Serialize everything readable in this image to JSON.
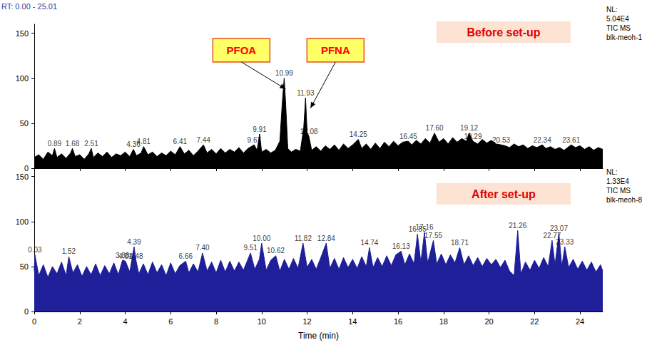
{
  "chart_data": [
    {
      "type": "line",
      "title": "RT: 0.00 - 25.01",
      "subtitle": "Before set-up",
      "side_text": [
        "NL:",
        "5.04E4",
        "TIC MS",
        "blk-meoh-1"
      ],
      "color": "#000000",
      "tick_labels": "y",
      "grid": false,
      "xlim": [
        0,
        25
      ],
      "xticks": [
        0,
        2,
        4,
        6,
        8,
        10,
        12,
        14,
        16,
        18,
        20,
        22,
        24
      ],
      "ylim": [
        0,
        160
      ],
      "yticks": [
        0,
        50,
        100,
        150
      ],
      "x": [
        0,
        0.2,
        0.4,
        0.6,
        0.8,
        0.89,
        1.0,
        1.2,
        1.4,
        1.6,
        1.68,
        1.8,
        2.0,
        2.2,
        2.4,
        2.51,
        2.6,
        2.8,
        3.0,
        3.2,
        3.4,
        3.6,
        3.8,
        4.0,
        4.2,
        4.36,
        4.5,
        4.7,
        4.81,
        5.0,
        5.2,
        5.4,
        5.6,
        5.8,
        6.0,
        6.2,
        6.41,
        6.6,
        6.8,
        7.0,
        7.2,
        7.44,
        7.6,
        7.8,
        8.0,
        8.2,
        8.4,
        8.6,
        8.8,
        9.0,
        9.2,
        9.4,
        9.67,
        9.8,
        9.91,
        10.0,
        10.2,
        10.4,
        10.6,
        10.8,
        10.9,
        10.99,
        11.05,
        11.15,
        11.3,
        11.5,
        11.7,
        11.85,
        11.93,
        12.0,
        12.08,
        12.2,
        12.4,
        12.6,
        12.8,
        13.0,
        13.2,
        13.4,
        13.6,
        13.8,
        14.0,
        14.25,
        14.4,
        14.6,
        14.8,
        15.0,
        15.2,
        15.4,
        15.6,
        15.8,
        16.0,
        16.2,
        16.45,
        16.6,
        16.8,
        17.0,
        17.2,
        17.4,
        17.6,
        17.8,
        18.0,
        18.2,
        18.4,
        18.6,
        18.8,
        19.0,
        19.12,
        19.29,
        19.5,
        19.7,
        19.9,
        20.1,
        20.3,
        20.53,
        20.7,
        20.9,
        21.1,
        21.3,
        21.5,
        21.7,
        21.9,
        22.1,
        22.34,
        22.5,
        22.7,
        22.9,
        23.1,
        23.3,
        23.61,
        23.8,
        24.0,
        24.2,
        24.4,
        24.6,
        24.8,
        25.0
      ],
      "values": [
        12,
        15,
        10,
        18,
        14,
        22,
        12,
        16,
        11,
        17,
        22,
        13,
        15,
        10,
        16,
        22,
        12,
        17,
        13,
        18,
        12,
        16,
        14,
        18,
        13,
        21,
        14,
        17,
        24,
        15,
        18,
        13,
        17,
        14,
        19,
        15,
        24,
        16,
        20,
        14,
        19,
        26,
        17,
        21,
        16,
        22,
        17,
        21,
        18,
        23,
        17,
        22,
        26,
        20,
        38,
        18,
        21,
        17,
        20,
        30,
        70,
        100,
        75,
        22,
        18,
        21,
        19,
        45,
        78,
        40,
        35,
        20,
        24,
        19,
        25,
        21,
        26,
        20,
        27,
        22,
        26,
        32,
        22,
        27,
        21,
        28,
        22,
        29,
        24,
        30,
        25,
        29,
        30,
        26,
        31,
        27,
        33,
        28,
        39,
        29,
        33,
        27,
        34,
        29,
        33,
        30,
        39,
        30,
        27,
        32,
        28,
        31,
        27,
        26,
        25,
        23,
        27,
        24,
        26,
        22,
        25,
        23,
        26,
        22,
        24,
        21,
        23,
        20,
        26,
        23,
        25,
        21,
        24,
        20,
        23,
        21
      ],
      "peaks": [
        {
          "x": 0.89,
          "label": "0.89"
        },
        {
          "x": 1.68,
          "label": "1.68"
        },
        {
          "x": 2.51,
          "label": "2.51"
        },
        {
          "x": 4.36,
          "label": "4.36"
        },
        {
          "x": 4.81,
          "label": "4.81"
        },
        {
          "x": 6.41,
          "label": "6.41"
        },
        {
          "x": 7.44,
          "label": "7.44"
        },
        {
          "x": 9.67,
          "label": "9.67"
        },
        {
          "x": 9.91,
          "label": "9.91"
        },
        {
          "x": 10.99,
          "label": "10.99"
        },
        {
          "x": 11.93,
          "label": "11.93"
        },
        {
          "x": 12.08,
          "label": "12.08"
        },
        {
          "x": 14.25,
          "label": "14.25"
        },
        {
          "x": 16.45,
          "label": "16.45"
        },
        {
          "x": 17.6,
          "label": "17.60"
        },
        {
          "x": 19.12,
          "label": "19.12"
        },
        {
          "x": 19.29,
          "label": "19.29"
        },
        {
          "x": 20.53,
          "label": "20.53"
        },
        {
          "x": 22.34,
          "label": "22.34"
        },
        {
          "x": 23.61,
          "label": "23.61"
        }
      ],
      "annotations": [
        {
          "text": "PFOA",
          "x": 10.99
        },
        {
          "text": "PFNA",
          "x": 11.93
        }
      ]
    },
    {
      "type": "line",
      "subtitle": "After set-up",
      "side_text": [
        "NL:",
        "1.33E4",
        "TIC MS",
        "blk-meoh-8"
      ],
      "color": "#1f1f99",
      "grid": false,
      "x_label": "Time (min)",
      "xlim": [
        0,
        25
      ],
      "xticks": [
        0,
        2,
        4,
        6,
        8,
        10,
        12,
        14,
        16,
        18,
        20,
        22,
        24
      ],
      "ylim": [
        0,
        160
      ],
      "yticks": [
        0,
        50,
        100,
        150
      ],
      "x": [
        0,
        0.03,
        0.2,
        0.4,
        0.6,
        0.8,
        1.0,
        1.2,
        1.4,
        1.52,
        1.7,
        1.9,
        2.1,
        2.3,
        2.5,
        2.7,
        2.9,
        3.1,
        3.3,
        3.5,
        3.7,
        3.88,
        4.01,
        4.2,
        4.39,
        4.48,
        4.6,
        4.8,
        5.0,
        5.2,
        5.4,
        5.6,
        5.8,
        6.0,
        6.2,
        6.4,
        6.66,
        6.8,
        7.0,
        7.2,
        7.4,
        7.6,
        7.8,
        8.0,
        8.2,
        8.4,
        8.6,
        8.8,
        9.0,
        9.2,
        9.51,
        9.7,
        9.9,
        10.0,
        10.2,
        10.4,
        10.62,
        10.8,
        11.0,
        11.2,
        11.4,
        11.6,
        11.82,
        12.0,
        12.2,
        12.4,
        12.6,
        12.84,
        13.0,
        13.2,
        13.4,
        13.6,
        13.8,
        14.0,
        14.2,
        14.4,
        14.6,
        14.74,
        14.9,
        15.1,
        15.3,
        15.5,
        15.7,
        15.9,
        16.13,
        16.3,
        16.5,
        16.7,
        16.85,
        17.0,
        17.16,
        17.3,
        17.55,
        17.7,
        17.9,
        18.1,
        18.3,
        18.5,
        18.71,
        18.9,
        19.1,
        19.3,
        19.5,
        19.7,
        19.9,
        20.1,
        20.3,
        20.5,
        20.7,
        20.9,
        21.1,
        21.26,
        21.4,
        21.6,
        21.8,
        22.0,
        22.2,
        22.4,
        22.6,
        22.77,
        22.9,
        23.07,
        23.2,
        23.33,
        23.5,
        23.7,
        23.9,
        24.1,
        24.3,
        24.5,
        24.7,
        24.9,
        25.0
      ],
      "values": [
        45,
        63,
        40,
        52,
        38,
        50,
        42,
        55,
        40,
        61,
        43,
        52,
        39,
        50,
        41,
        53,
        40,
        51,
        42,
        54,
        41,
        57,
        56,
        44,
        72,
        56,
        42,
        53,
        41,
        55,
        43,
        52,
        40,
        54,
        42,
        51,
        56,
        43,
        53,
        44,
        65,
        45,
        55,
        43,
        57,
        44,
        56,
        45,
        55,
        46,
        65,
        47,
        58,
        76,
        46,
        57,
        62,
        45,
        58,
        47,
        59,
        48,
        76,
        49,
        58,
        47,
        60,
        76,
        48,
        59,
        47,
        60,
        49,
        58,
        48,
        61,
        50,
        71,
        49,
        60,
        50,
        62,
        51,
        63,
        67,
        52,
        64,
        53,
        86,
        55,
        88,
        54,
        79,
        53,
        64,
        52,
        63,
        54,
        71,
        52,
        62,
        51,
        60,
        50,
        59,
        52,
        58,
        49,
        57,
        45,
        40,
        90,
        42,
        55,
        46,
        57,
        48,
        60,
        50,
        79,
        52,
        87,
        50,
        72,
        49,
        58,
        47,
        56,
        46,
        55,
        44,
        52,
        45
      ],
      "peaks": [
        {
          "x": 0.03,
          "label": "0.03"
        },
        {
          "x": 1.52,
          "label": "1.52"
        },
        {
          "x": 3.88,
          "label": "3.88"
        },
        {
          "x": 4.01,
          "label": "4.01"
        },
        {
          "x": 4.39,
          "label": "4.39"
        },
        {
          "x": 4.48,
          "label": "4.48"
        },
        {
          "x": 6.66,
          "label": "6.66"
        },
        {
          "x": 7.4,
          "label": "7.40"
        },
        {
          "x": 9.51,
          "label": "9.51"
        },
        {
          "x": 10.0,
          "label": "10.00"
        },
        {
          "x": 10.62,
          "label": "10.62"
        },
        {
          "x": 11.82,
          "label": "11.82"
        },
        {
          "x": 12.84,
          "label": "12.84"
        },
        {
          "x": 14.74,
          "label": "14.74"
        },
        {
          "x": 16.13,
          "label": "16.13"
        },
        {
          "x": 16.85,
          "label": "16.85"
        },
        {
          "x": 17.16,
          "label": "17.16"
        },
        {
          "x": 17.55,
          "label": "17.55"
        },
        {
          "x": 18.71,
          "label": "18.71"
        },
        {
          "x": 21.26,
          "label": "21.26"
        },
        {
          "x": 22.77,
          "label": "22.77"
        },
        {
          "x": 23.07,
          "label": "23.07"
        },
        {
          "x": 23.33,
          "label": "23.33"
        }
      ]
    }
  ]
}
